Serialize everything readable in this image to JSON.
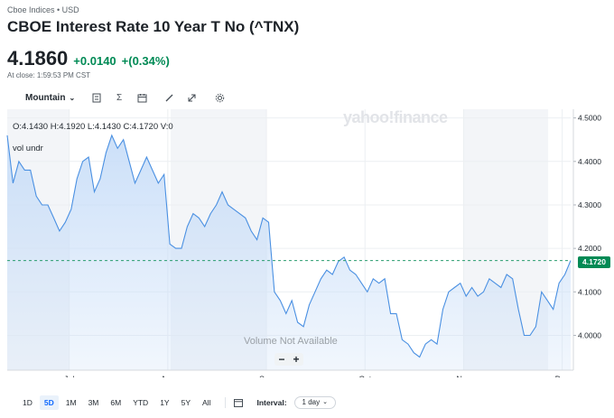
{
  "quote": {
    "source": "Cboe Indices • USD",
    "title": "CBOE Interest Rate 10 Year T No (^TNX)",
    "price": "4.1860",
    "change": "+0.0140",
    "change_pct": "+(0.34%)",
    "close_time": "At close: 1:59:53 PM CST",
    "up_color": "#008a55"
  },
  "toolbar": {
    "chart_type": "Mountain",
    "icons": [
      "indicators-icon",
      "sigma-icon",
      "calendar-event-icon",
      "draw-icon",
      "expand-icon",
      "settings-icon"
    ]
  },
  "chart_info": {
    "ohlc": "O:4.1430   H:4.1920   L:4.1430   C:4.1720   V:0",
    "volume_label": "vol undr",
    "watermark": "yahoo!finance",
    "no_volume": "Volume Not Available",
    "current_badge": "4.1720",
    "zoom_minus": "−",
    "zoom_plus": "+"
  },
  "chart_data": {
    "type": "area",
    "series": [
      {
        "values": [
          4.46,
          4.35,
          4.4,
          4.38,
          4.38,
          4.32,
          4.3,
          4.3,
          4.27,
          4.24,
          4.26,
          4.29,
          4.36,
          4.4,
          4.41,
          4.33,
          4.36,
          4.42,
          4.46,
          4.43,
          4.45,
          4.4,
          4.35,
          4.38,
          4.41,
          4.38,
          4.35,
          4.37,
          4.21,
          4.2,
          4.2,
          4.25,
          4.28,
          4.27,
          4.25,
          4.28,
          4.3,
          4.33,
          4.3,
          4.29,
          4.28,
          4.27,
          4.24,
          4.22,
          4.27,
          4.26,
          4.1,
          4.08,
          4.05,
          4.08,
          4.03,
          4.02,
          4.07,
          4.1,
          4.13,
          4.15,
          4.14,
          4.17,
          4.18,
          4.15,
          4.14,
          4.12,
          4.1,
          4.13,
          4.12,
          4.13,
          4.05,
          4.05,
          3.99,
          3.98,
          3.96,
          3.95,
          3.98,
          3.99,
          3.98,
          4.06,
          4.1,
          4.11,
          4.12,
          4.09,
          4.11,
          4.09,
          4.1,
          4.13,
          4.12,
          4.11,
          4.14,
          4.13,
          4.06,
          4.0,
          4.0,
          4.02,
          4.1,
          4.08,
          4.06,
          4.12,
          4.14,
          4.172
        ]
      }
    ],
    "x_labels": [
      "Jul",
      "Aug",
      "Sep",
      "Oct",
      "Nov",
      "Dec"
    ],
    "x_label_fracs": [
      0.11,
      0.285,
      0.46,
      0.635,
      0.81,
      0.985
    ],
    "y_ticks": [
      "4.5000",
      "4.4000",
      "4.3000",
      "4.2000",
      "4.1000",
      "4.0000"
    ],
    "y_tick_values": [
      4.5,
      4.4,
      4.3,
      4.2,
      4.1,
      4.0
    ],
    "ylim": [
      3.92,
      4.52
    ],
    "current_value": 4.172,
    "line_color": "#4a90e2",
    "fill_color": "#c9def8",
    "shaded_bands": [
      [
        0.0,
        0.11
      ],
      [
        0.29,
        0.46
      ],
      [
        0.81,
        0.96
      ]
    ],
    "grid": true
  },
  "range_bar": {
    "ranges": [
      "1D",
      "5D",
      "1M",
      "3M",
      "6M",
      "YTD",
      "1Y",
      "5Y",
      "All"
    ],
    "active_index": 1,
    "interval_label": "Interval:",
    "interval_value": "1 day"
  }
}
